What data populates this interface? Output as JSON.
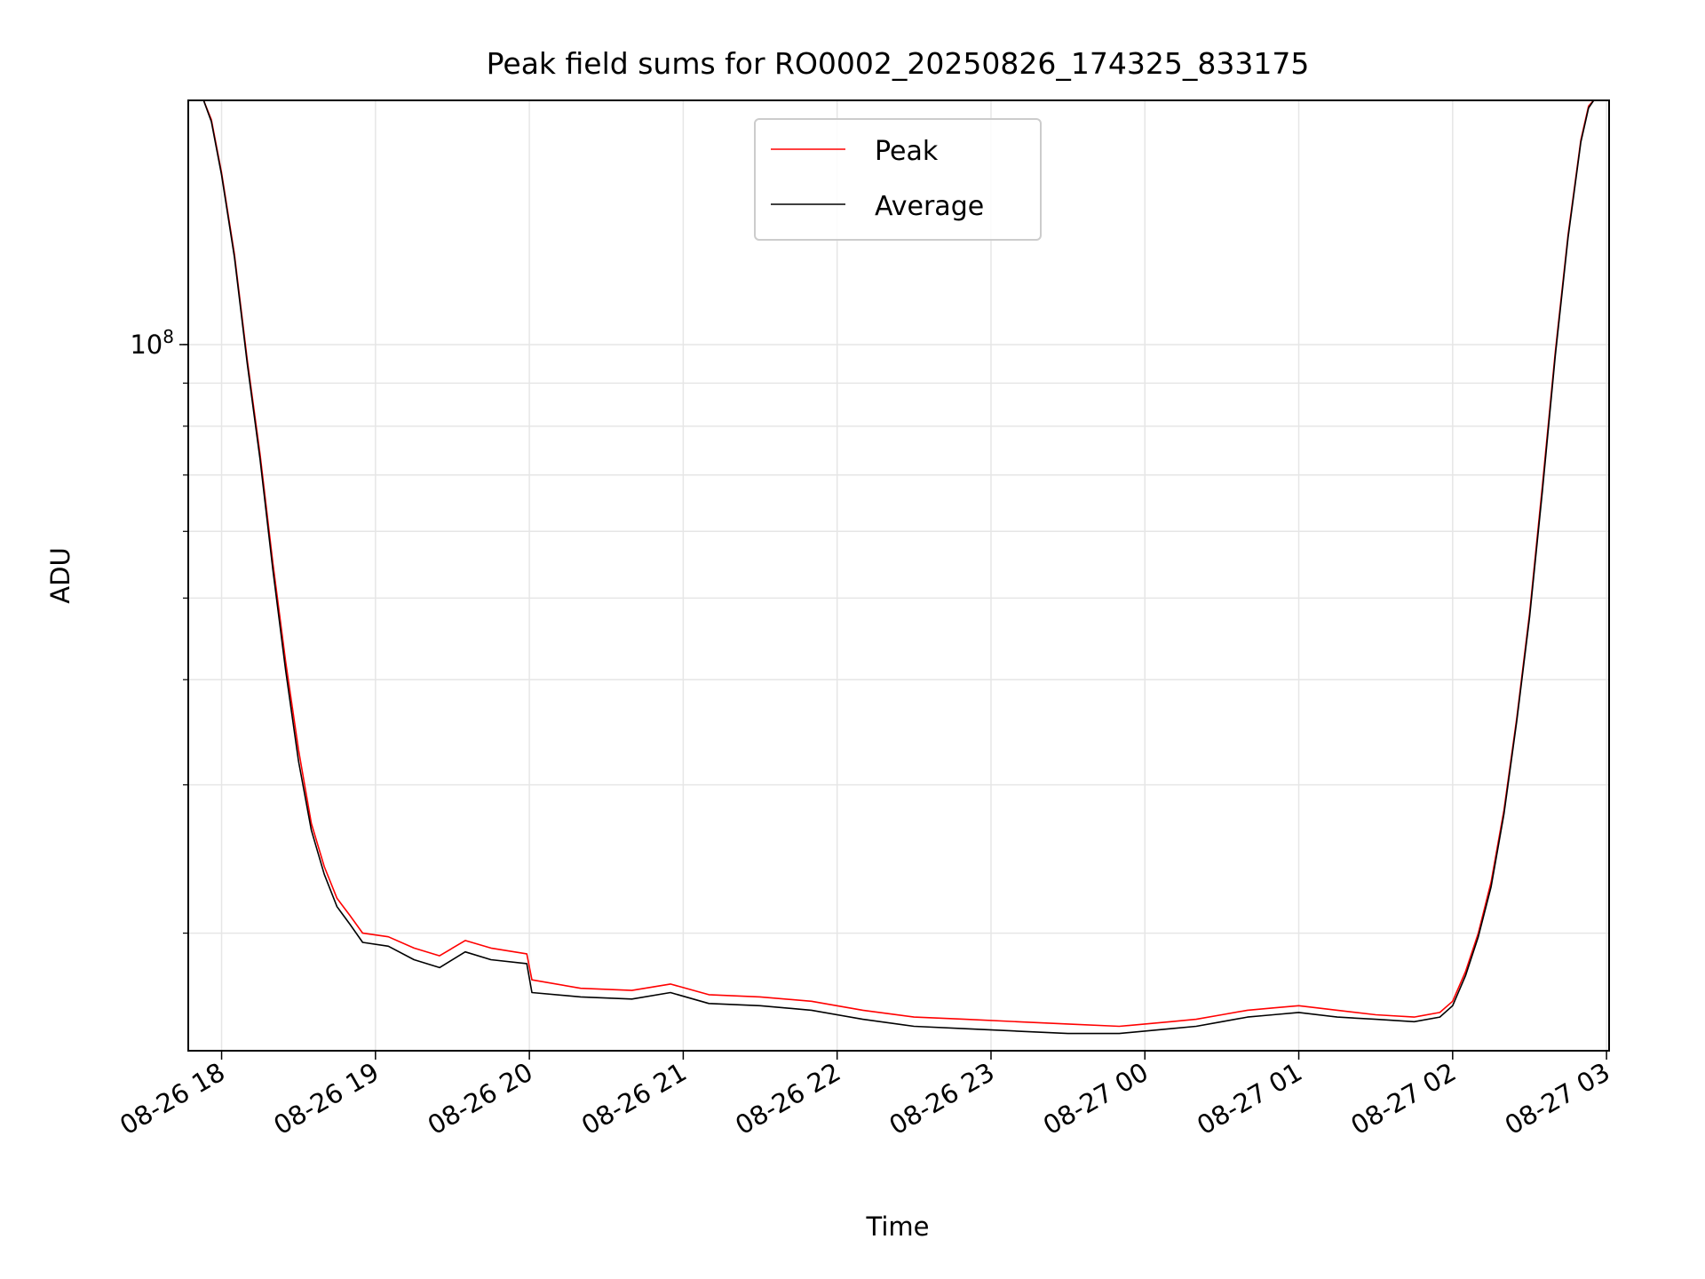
{
  "chart_data": {
    "type": "line",
    "title": "Peak field sums for RO0002_20250826_174325_833175",
    "xlabel": "Time",
    "ylabel": "ADU",
    "yscale": "log",
    "ylim": [
      14500000,
      195000000
    ],
    "xlim": [
      "2025-08-26 17:47",
      "2025-08-27 03:01"
    ],
    "x_ticks": [
      {
        "label": "08-26 18",
        "t": "2025-08-26 18:00"
      },
      {
        "label": "08-26 19",
        "t": "2025-08-26 19:00"
      },
      {
        "label": "08-26 20",
        "t": "2025-08-26 20:00"
      },
      {
        "label": "08-26 21",
        "t": "2025-08-26 21:00"
      },
      {
        "label": "08-26 22",
        "t": "2025-08-26 22:00"
      },
      {
        "label": "08-26 23",
        "t": "2025-08-26 23:00"
      },
      {
        "label": "08-27 00",
        "t": "2025-08-27 00:00"
      },
      {
        "label": "08-27 01",
        "t": "2025-08-27 01:00"
      },
      {
        "label": "08-27 02",
        "t": "2025-08-27 02:00"
      },
      {
        "label": "08-27 03",
        "t": "2025-08-27 03:00"
      }
    ],
    "y_ticks": [
      {
        "base": "10",
        "exp": "8",
        "value": 100000000
      }
    ],
    "grid": true,
    "legend_position": "top-center",
    "series": [
      {
        "name": "Peak",
        "color": "#ff0000",
        "x": [
          "2025-08-26 17:53",
          "2025-08-26 17:56",
          "2025-08-26 18:00",
          "2025-08-26 18:05",
          "2025-08-26 18:10",
          "2025-08-26 18:15",
          "2025-08-26 18:20",
          "2025-08-26 18:25",
          "2025-08-26 18:30",
          "2025-08-26 18:35",
          "2025-08-26 18:40",
          "2025-08-26 18:45",
          "2025-08-26 18:50",
          "2025-08-26 18:55",
          "2025-08-26 19:05",
          "2025-08-26 19:15",
          "2025-08-26 19:25",
          "2025-08-26 19:35",
          "2025-08-26 19:45",
          "2025-08-26 19:59",
          "2025-08-26 20:01",
          "2025-08-26 20:20",
          "2025-08-26 20:40",
          "2025-08-26 20:55",
          "2025-08-26 21:10",
          "2025-08-26 21:30",
          "2025-08-26 21:50",
          "2025-08-26 22:10",
          "2025-08-26 22:30",
          "2025-08-26 22:50",
          "2025-08-26 23:10",
          "2025-08-26 23:30",
          "2025-08-26 23:50",
          "2025-08-27 00:10",
          "2025-08-27 00:20",
          "2025-08-27 00:30",
          "2025-08-27 00:40",
          "2025-08-27 00:50",
          "2025-08-27 01:00",
          "2025-08-27 01:15",
          "2025-08-27 01:30",
          "2025-08-27 01:45",
          "2025-08-27 01:55",
          "2025-08-27 02:00",
          "2025-08-27 02:05",
          "2025-08-27 02:10",
          "2025-08-27 02:15",
          "2025-08-27 02:20",
          "2025-08-27 02:25",
          "2025-08-27 02:30",
          "2025-08-27 02:35",
          "2025-08-27 02:40",
          "2025-08-27 02:45",
          "2025-08-27 02:50",
          "2025-08-27 02:53",
          "2025-08-27 02:55"
        ],
        "values": [
          195000000,
          185000000,
          160000000,
          128000000,
          96000000,
          74000000,
          55000000,
          42000000,
          33000000,
          27000000,
          24000000,
          22000000,
          21000000,
          20000000,
          19800000,
          19200000,
          18800000,
          19600000,
          19200000,
          18900000,
          17600000,
          17200000,
          17100000,
          17400000,
          16900000,
          16800000,
          16600000,
          16200000,
          15900000,
          15800000,
          15700000,
          15600000,
          15500000,
          15700000,
          15800000,
          16000000,
          16200000,
          16300000,
          16400000,
          16200000,
          16000000,
          15900000,
          16100000,
          16600000,
          18000000,
          20000000,
          23000000,
          28000000,
          36000000,
          48000000,
          68000000,
          98000000,
          135000000,
          175000000,
          192000000,
          195000000
        ]
      },
      {
        "name": "Average",
        "color": "#000000",
        "x": [
          "2025-08-26 17:53",
          "2025-08-26 17:56",
          "2025-08-26 18:00",
          "2025-08-26 18:05",
          "2025-08-26 18:10",
          "2025-08-26 18:15",
          "2025-08-26 18:20",
          "2025-08-26 18:25",
          "2025-08-26 18:30",
          "2025-08-26 18:35",
          "2025-08-26 18:40",
          "2025-08-26 18:45",
          "2025-08-26 18:50",
          "2025-08-26 18:55",
          "2025-08-26 19:05",
          "2025-08-26 19:15",
          "2025-08-26 19:25",
          "2025-08-26 19:35",
          "2025-08-26 19:45",
          "2025-08-26 19:59",
          "2025-08-26 20:01",
          "2025-08-26 20:20",
          "2025-08-26 20:40",
          "2025-08-26 20:55",
          "2025-08-26 21:10",
          "2025-08-26 21:30",
          "2025-08-26 21:50",
          "2025-08-26 22:10",
          "2025-08-26 22:30",
          "2025-08-26 22:50",
          "2025-08-26 23:10",
          "2025-08-26 23:30",
          "2025-08-26 23:50",
          "2025-08-27 00:10",
          "2025-08-27 00:20",
          "2025-08-27 00:30",
          "2025-08-27 00:40",
          "2025-08-27 00:50",
          "2025-08-27 01:00",
          "2025-08-27 01:15",
          "2025-08-27 01:30",
          "2025-08-27 01:45",
          "2025-08-27 01:55",
          "2025-08-27 02:00",
          "2025-08-27 02:05",
          "2025-08-27 02:10",
          "2025-08-27 02:15",
          "2025-08-27 02:20",
          "2025-08-27 02:25",
          "2025-08-27 02:30",
          "2025-08-27 02:35",
          "2025-08-27 02:40",
          "2025-08-27 02:45",
          "2025-08-27 02:50",
          "2025-08-27 02:53",
          "2025-08-27 02:55"
        ],
        "values": [
          195000000,
          184000000,
          159000000,
          127000000,
          95000000,
          73000000,
          54000000,
          41000000,
          32000000,
          26500000,
          23500000,
          21500000,
          20500000,
          19500000,
          19300000,
          18600000,
          18200000,
          19000000,
          18600000,
          18400000,
          17000000,
          16800000,
          16700000,
          17000000,
          16500000,
          16400000,
          16200000,
          15800000,
          15500000,
          15400000,
          15300000,
          15200000,
          15200000,
          15400000,
          15500000,
          15700000,
          15900000,
          16000000,
          16100000,
          15900000,
          15800000,
          15700000,
          15900000,
          16400000,
          17800000,
          19800000,
          22700000,
          27700000,
          35700000,
          47500000,
          67000000,
          97000000,
          134000000,
          174000000,
          191000000,
          195000000
        ]
      }
    ]
  }
}
